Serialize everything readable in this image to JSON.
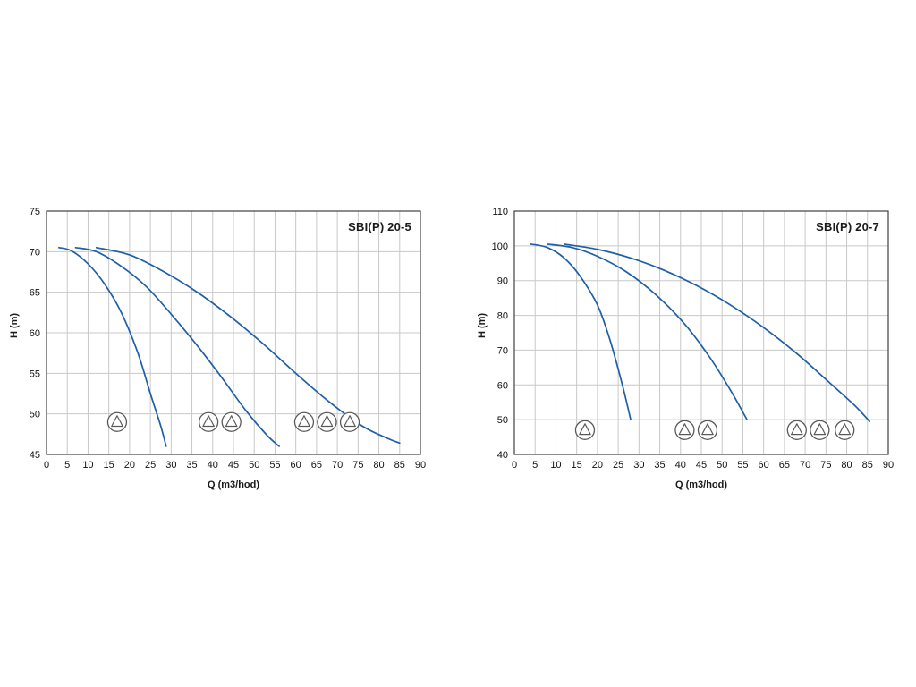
{
  "page": {
    "background": "#ffffff"
  },
  "chart_data": [
    {
      "type": "line",
      "title": "SBI(P) 20-5",
      "xlabel": "Q (m3/hod)",
      "ylabel": "H (m)",
      "xlim": [
        0,
        90
      ],
      "ylim": [
        45,
        75
      ],
      "x_ticks": [
        0,
        5,
        10,
        15,
        20,
        25,
        30,
        35,
        40,
        45,
        50,
        55,
        60,
        65,
        70,
        75,
        80,
        85,
        90
      ],
      "y_ticks": [
        45,
        50,
        55,
        60,
        65,
        70,
        75
      ],
      "grid": true,
      "curve_color": "#1f5fa8",
      "grid_color": "#c8c8c8",
      "border_color": "#404040",
      "icon_color": "#5a5a5a",
      "series": [
        {
          "name": "1 pump",
          "x": [
            3,
            6,
            10,
            14,
            18,
            22,
            25,
            27.5,
            28.8
          ],
          "y": [
            70.5,
            70.1,
            68.5,
            66.0,
            62.5,
            57.5,
            52.5,
            48.5,
            46.0
          ]
        },
        {
          "name": "2 pumps",
          "x": [
            7,
            12,
            18,
            24,
            30,
            36,
            42,
            48,
            53,
            56
          ],
          "y": [
            70.5,
            70.0,
            68.2,
            65.7,
            62.3,
            58.6,
            54.6,
            50.4,
            47.4,
            46.0
          ]
        },
        {
          "name": "3 pumps",
          "x": [
            12,
            20,
            28,
            36,
            44,
            52,
            60,
            68,
            76,
            82,
            85
          ],
          "y": [
            70.5,
            69.6,
            67.6,
            65.1,
            62.1,
            58.7,
            55.0,
            51.5,
            48.5,
            47.0,
            46.4
          ]
        }
      ],
      "pump_icons": [
        {
          "x": 17,
          "y": 49
        },
        {
          "x": 39,
          "y": 49
        },
        {
          "x": 44.5,
          "y": 49
        },
        {
          "x": 62,
          "y": 49
        },
        {
          "x": 67.5,
          "y": 49
        },
        {
          "x": 73,
          "y": 49
        }
      ]
    },
    {
      "type": "line",
      "title": "SBI(P) 20-7",
      "xlabel": "Q (m3/hod)",
      "ylabel": "H (m)",
      "xlim": [
        0,
        90
      ],
      "ylim": [
        40,
        110
      ],
      "x_ticks": [
        0,
        5,
        10,
        15,
        20,
        25,
        30,
        35,
        40,
        45,
        50,
        55,
        60,
        65,
        70,
        75,
        80,
        85,
        90
      ],
      "y_ticks": [
        40,
        50,
        60,
        70,
        80,
        90,
        100,
        110
      ],
      "grid": true,
      "curve_color": "#1f5fa8",
      "grid_color": "#c8c8c8",
      "border_color": "#404040",
      "icon_color": "#5a5a5a",
      "series": [
        {
          "name": "1 pump",
          "x": [
            4,
            8,
            12,
            16,
            20,
            23,
            26,
            28
          ],
          "y": [
            100.5,
            99.5,
            96.5,
            91.0,
            83.0,
            73.0,
            60.0,
            50.0
          ]
        },
        {
          "name": "2 pumps",
          "x": [
            8,
            14,
            20,
            27,
            34,
            41,
            47,
            52,
            56
          ],
          "y": [
            100.5,
            99.5,
            97.0,
            92.5,
            86.0,
            77.5,
            68.0,
            58.5,
            50.0
          ]
        },
        {
          "name": "3 pumps",
          "x": [
            12,
            20,
            28,
            36,
            44,
            52,
            60,
            68,
            76,
            82,
            85.5
          ],
          "y": [
            100.5,
            99.0,
            96.5,
            93.0,
            88.5,
            83.0,
            76.5,
            69.0,
            60.5,
            54.0,
            49.5
          ]
        }
      ],
      "pump_icons": [
        {
          "x": 17,
          "y": 47
        },
        {
          "x": 41,
          "y": 47
        },
        {
          "x": 46.5,
          "y": 47
        },
        {
          "x": 68,
          "y": 47
        },
        {
          "x": 73.5,
          "y": 47
        },
        {
          "x": 79.5,
          "y": 47
        }
      ]
    }
  ]
}
